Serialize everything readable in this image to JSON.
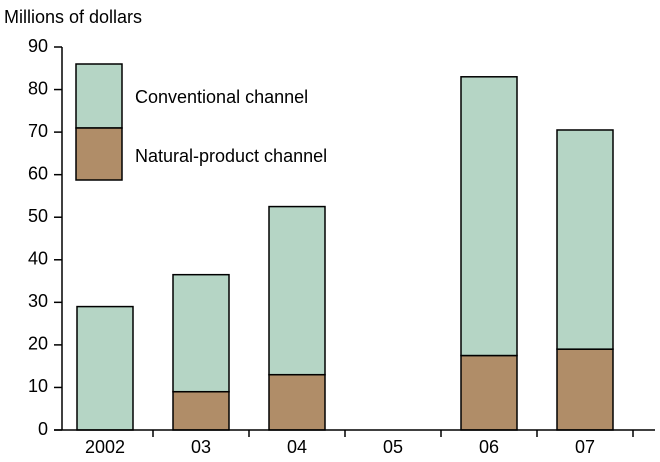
{
  "chart_data": {
    "type": "stacked_bar",
    "title": "Millions of dollars",
    "categories": [
      "2002",
      "03",
      "04",
      "05",
      "06",
      "07"
    ],
    "series": [
      {
        "name": "Natural-product channel",
        "color": "#b08d68",
        "values": [
          0,
          9,
          13,
          null,
          17.5,
          19
        ]
      },
      {
        "name": "Conventional channel",
        "color": "#b5d5c5",
        "values": [
          29,
          27.5,
          39.5,
          null,
          65.5,
          51.5
        ]
      }
    ],
    "ylim": [
      0,
      90
    ],
    "yticks": [
      0,
      10,
      20,
      30,
      40,
      50,
      60,
      70,
      80,
      90
    ],
    "grid": false
  }
}
